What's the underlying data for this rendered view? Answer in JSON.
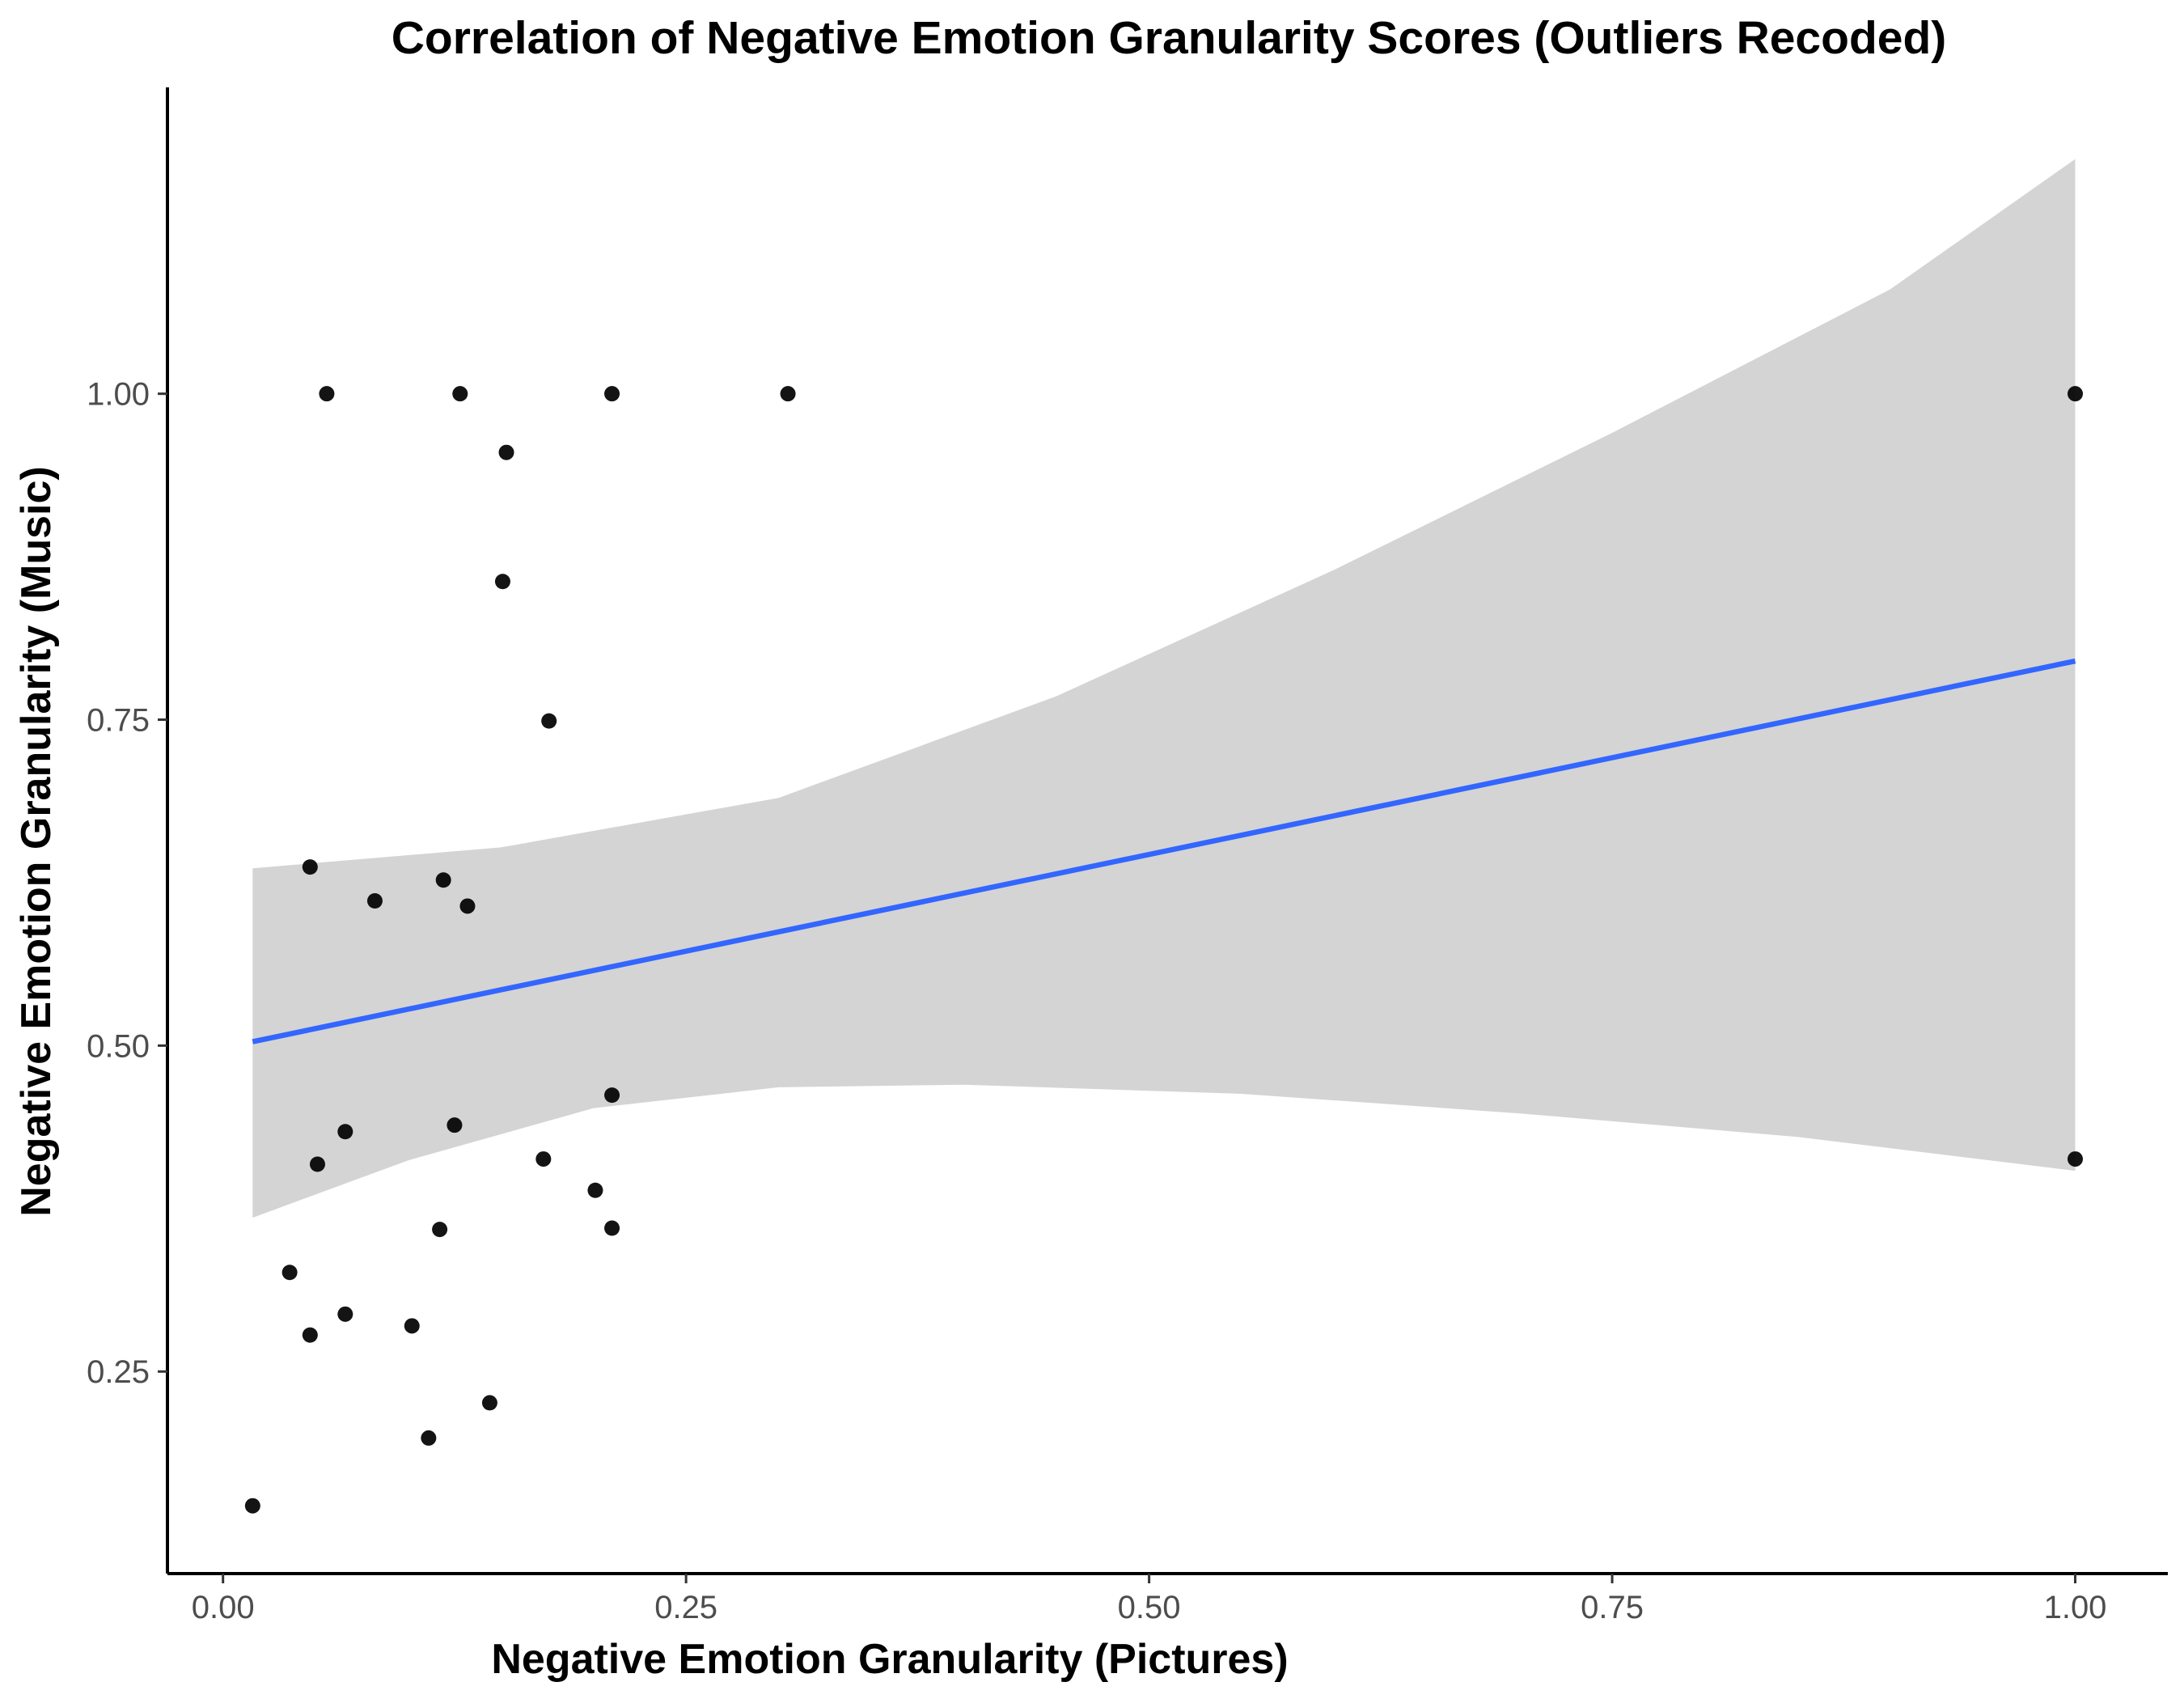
{
  "chart_data": {
    "type": "scatter",
    "title": "Correlation of Negative Emotion Granularity Scores (Outliers Recoded)",
    "xlabel": "Negative Emotion Granularity (Pictures)",
    "ylabel": "Negative Emotion Granularity (Music)",
    "xlim": [
      -0.03,
      1.05
    ],
    "ylim": [
      0.095,
      1.235
    ],
    "x_ticks": [
      0.0,
      0.25,
      0.5,
      0.75,
      1.0
    ],
    "x_tick_labels": [
      "0.00",
      "0.25",
      "0.50",
      "0.75",
      "1.00"
    ],
    "y_ticks": [
      0.25,
      0.5,
      0.75,
      1.0
    ],
    "y_tick_labels": [
      "0.25",
      "0.50",
      "0.75",
      "1.00"
    ],
    "grid": false,
    "legend": "none",
    "points": [
      {
        "x": 0.016,
        "y": 0.147
      },
      {
        "x": 0.036,
        "y": 0.326
      },
      {
        "x": 0.047,
        "y": 0.278
      },
      {
        "x": 0.047,
        "y": 0.637
      },
      {
        "x": 0.051,
        "y": 0.409
      },
      {
        "x": 0.056,
        "y": 1.0
      },
      {
        "x": 0.066,
        "y": 0.294
      },
      {
        "x": 0.066,
        "y": 0.434
      },
      {
        "x": 0.082,
        "y": 0.611
      },
      {
        "x": 0.102,
        "y": 0.285
      },
      {
        "x": 0.111,
        "y": 0.199
      },
      {
        "x": 0.117,
        "y": 0.359
      },
      {
        "x": 0.119,
        "y": 0.627
      },
      {
        "x": 0.125,
        "y": 0.439
      },
      {
        "x": 0.128,
        "y": 1.0
      },
      {
        "x": 0.132,
        "y": 0.607
      },
      {
        "x": 0.144,
        "y": 0.226
      },
      {
        "x": 0.151,
        "y": 0.856
      },
      {
        "x": 0.153,
        "y": 0.955
      },
      {
        "x": 0.173,
        "y": 0.413
      },
      {
        "x": 0.176,
        "y": 0.749
      },
      {
        "x": 0.201,
        "y": 0.389
      },
      {
        "x": 0.21,
        "y": 0.462
      },
      {
        "x": 0.21,
        "y": 0.36
      },
      {
        "x": 0.21,
        "y": 1.0
      },
      {
        "x": 0.305,
        "y": 1.0
      },
      {
        "x": 1.0,
        "y": 1.0
      },
      {
        "x": 1.0,
        "y": 0.413
      }
    ],
    "regression": {
      "method": "linear",
      "x_range": [
        0.016,
        1.0
      ],
      "line": [
        {
          "x": 0.016,
          "y": 0.503
        },
        {
          "x": 1.0,
          "y": 0.795
        }
      ],
      "ci_upper": [
        {
          "x": 0.016,
          "y": 0.636
        },
        {
          "x": 0.15,
          "y": 0.652
        },
        {
          "x": 0.3,
          "y": 0.69
        },
        {
          "x": 0.45,
          "y": 0.768
        },
        {
          "x": 0.6,
          "y": 0.865
        },
        {
          "x": 0.75,
          "y": 0.97
        },
        {
          "x": 0.9,
          "y": 1.08
        },
        {
          "x": 1.0,
          "y": 1.18
        }
      ],
      "ci_lower": [
        {
          "x": 0.016,
          "y": 0.368
        },
        {
          "x": 0.1,
          "y": 0.412
        },
        {
          "x": 0.2,
          "y": 0.452
        },
        {
          "x": 0.3,
          "y": 0.468
        },
        {
          "x": 0.4,
          "y": 0.47
        },
        {
          "x": 0.55,
          "y": 0.463
        },
        {
          "x": 0.7,
          "y": 0.448
        },
        {
          "x": 0.85,
          "y": 0.43
        },
        {
          "x": 1.0,
          "y": 0.404
        }
      ]
    },
    "colors": {
      "points": "#000000",
      "line": "#3366FF",
      "ci_band": "#D4D4D4",
      "axis": "#000000",
      "tick_label": "#4d4d4d"
    }
  }
}
